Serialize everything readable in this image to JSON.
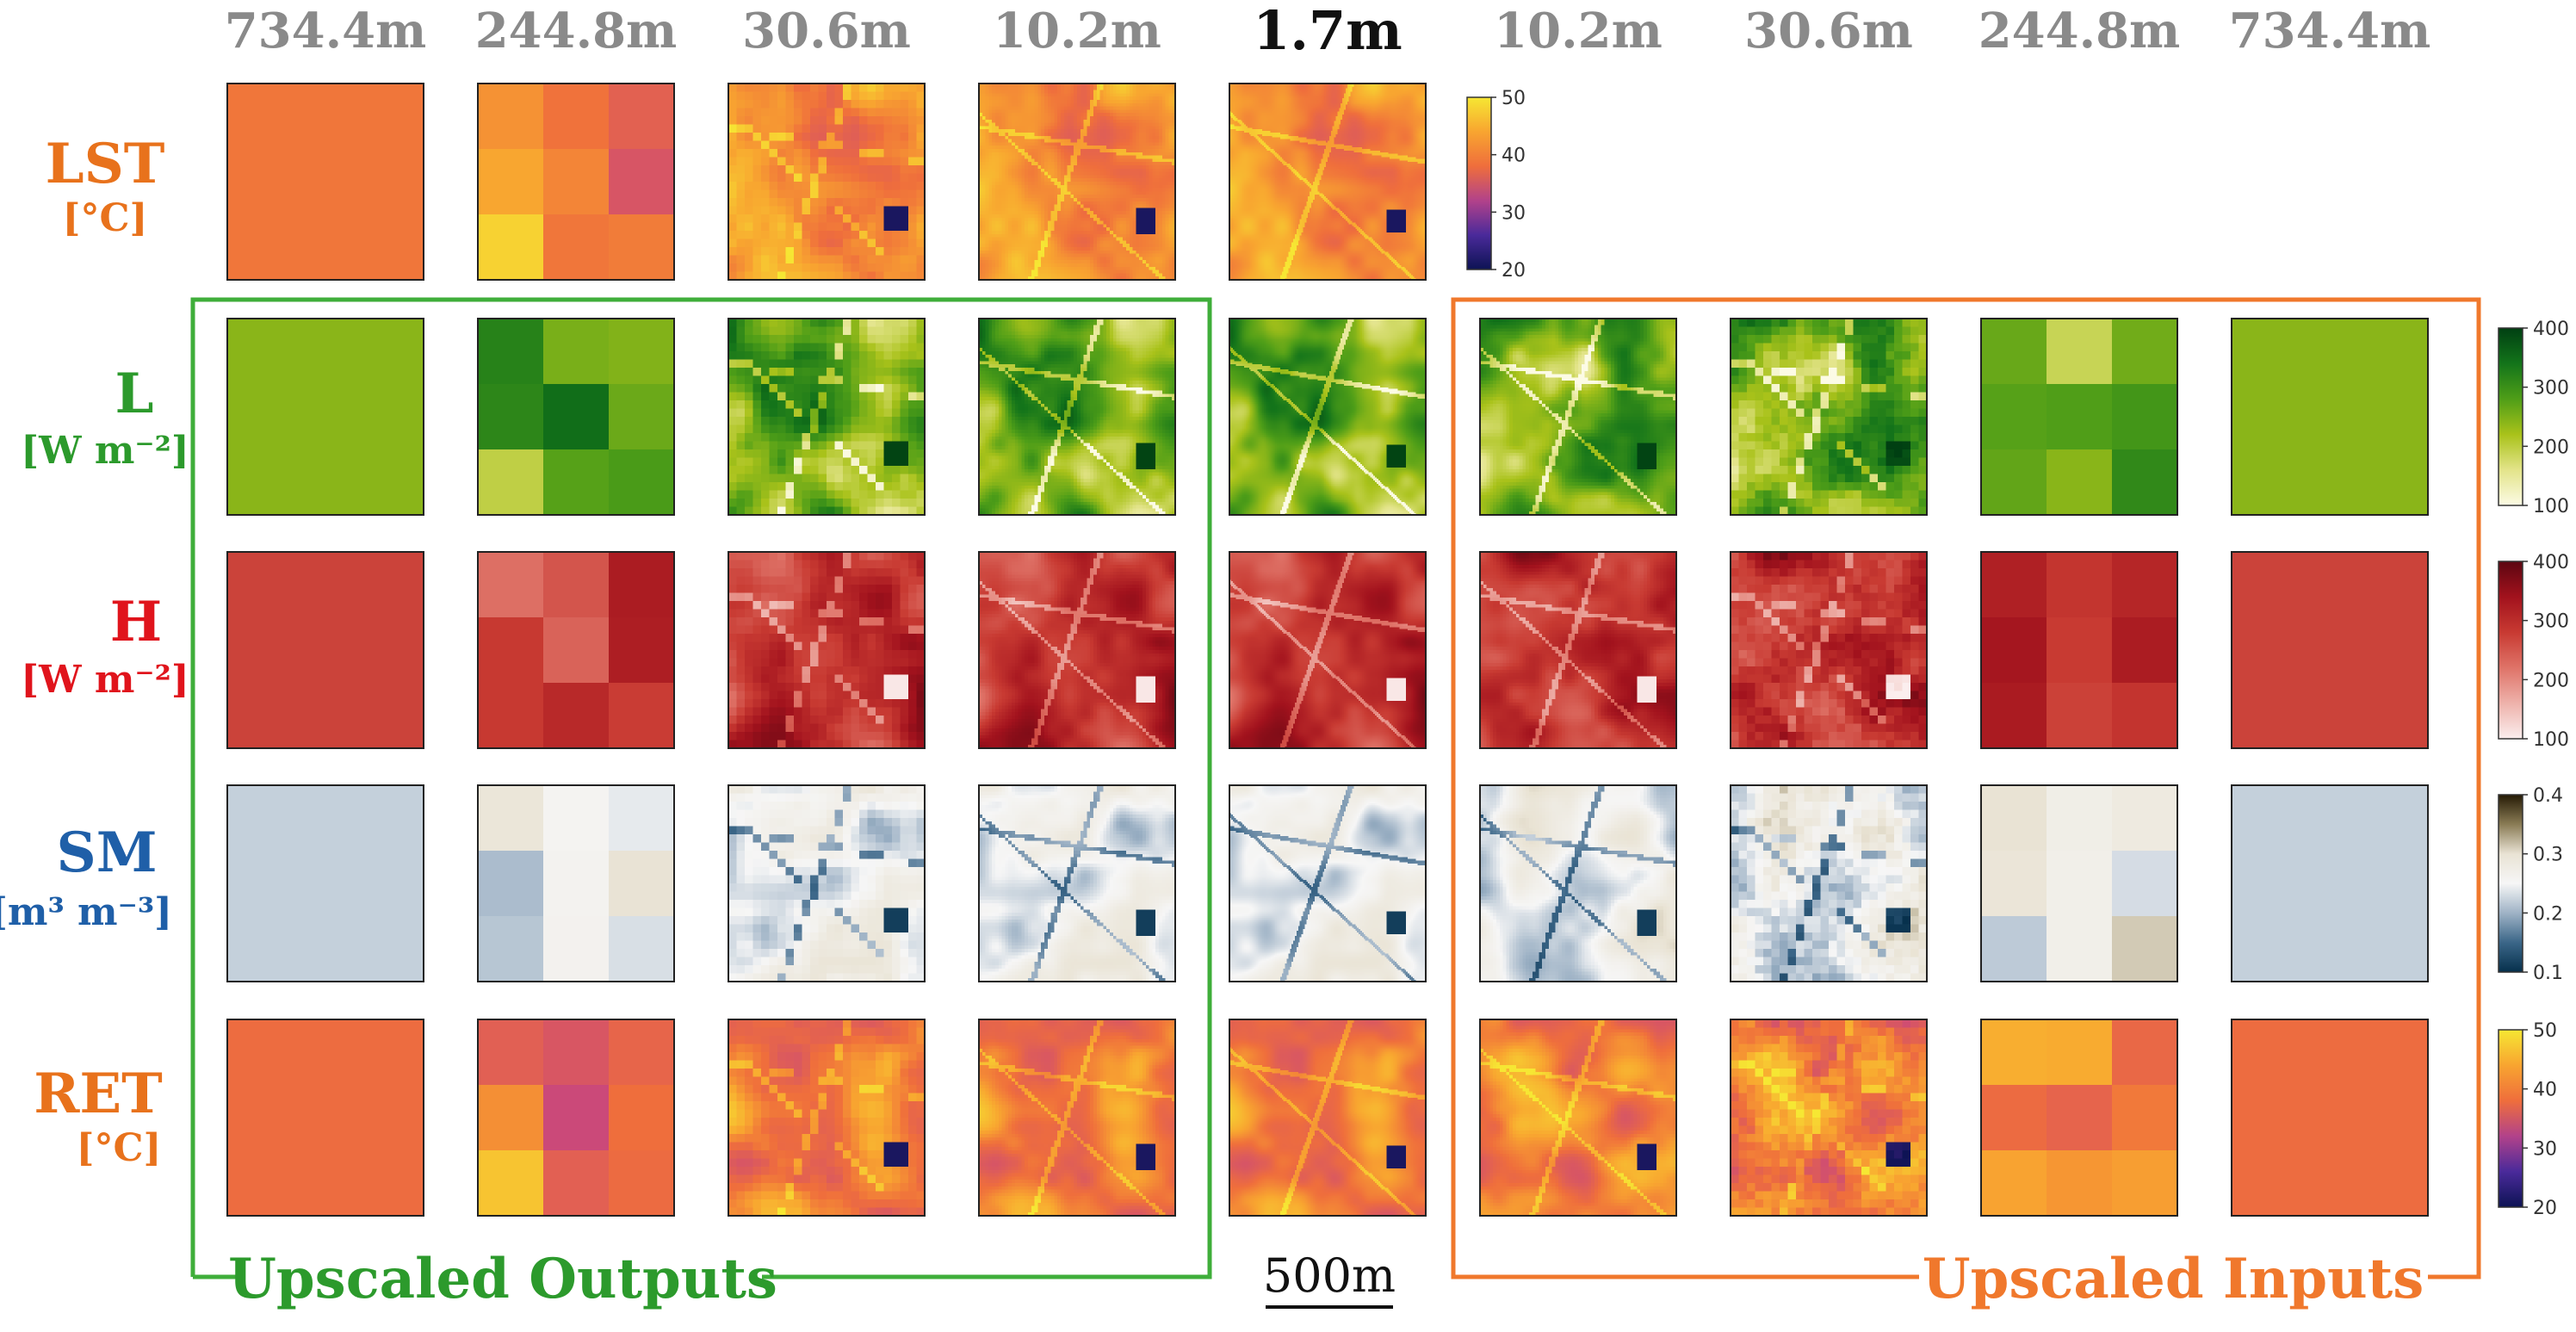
{
  "columns": {
    "resolutions": [
      "734.4m",
      "244.8m",
      "30.6m",
      "10.2m",
      "1.7m",
      "10.2m",
      "30.6m",
      "244.8m",
      "734.4m"
    ],
    "highlight_index": 4
  },
  "rows": [
    {
      "key": "LST",
      "name": "LST",
      "unit": "[°C]",
      "color": "#e8721c",
      "colorbar": {
        "ticks": [
          "50",
          "40",
          "30",
          "20"
        ],
        "stops": [
          "#f6e733",
          "#f8a530",
          "#ef6e3c",
          "#b2428a",
          "#4a2a9a",
          "#0d1354"
        ]
      }
    },
    {
      "key": "L",
      "name": "L",
      "unit": "[W m⁻²]",
      "color": "#2c9a2c",
      "colorbar": {
        "ticks": [
          "400",
          "300",
          "200",
          "100"
        ],
        "stops": [
          "#003f12",
          "#13741a",
          "#4f9e18",
          "#a9c21a",
          "#e3e48a",
          "#fcfbe5"
        ]
      }
    },
    {
      "key": "H",
      "name": "H",
      "unit": "[W m⁻²]",
      "color": "#e0141c",
      "colorbar": {
        "ticks": [
          "400",
          "300",
          "200",
          "100"
        ],
        "stops": [
          "#5c0611",
          "#a2121d",
          "#c83a32",
          "#df7368",
          "#eeb2ab",
          "#fbeeee"
        ]
      }
    },
    {
      "key": "SM",
      "name": "SM",
      "unit": "[m³ m⁻³]",
      "color": "#1f5fa8",
      "colorbar": {
        "ticks": [
          "0.4",
          "0.3",
          "0.2",
          "0.1"
        ],
        "stops": [
          "#251a05",
          "#8a7c55",
          "#e9e3d4",
          "#f6f6f6",
          "#9fb3c6",
          "#3b6688",
          "#06304c"
        ]
      }
    },
    {
      "key": "RET",
      "name": "RET",
      "unit": "[°C]",
      "color": "#e8721c",
      "colorbar": {
        "ticks": [
          "50",
          "40",
          "30",
          "20"
        ],
        "stops": [
          "#f6e733",
          "#f8a530",
          "#ef6e3c",
          "#b2428a",
          "#4a2a9a",
          "#0d1354"
        ]
      }
    }
  ],
  "groups": {
    "outputs_label": "Upscaled Outputs",
    "outputs_color": "#3fae3a",
    "inputs_label": "Upscaled Inputs",
    "inputs_color": "#f0782c"
  },
  "scalebar": {
    "label": "500m"
  }
}
